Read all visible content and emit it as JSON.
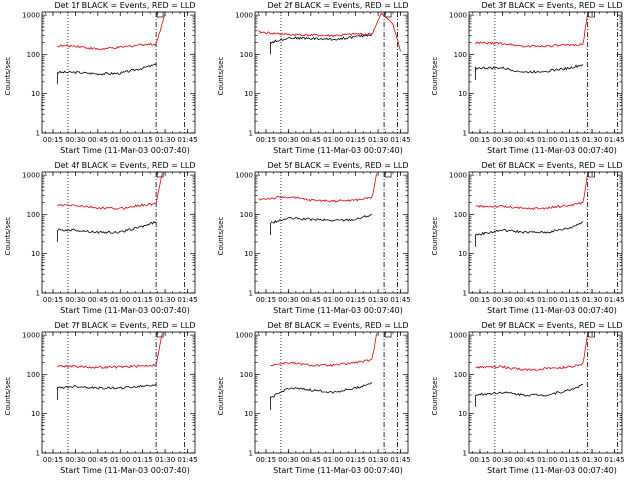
{
  "chart_data": [
    {
      "type": "line",
      "title": "Det 1f BLACK = Events, RED = LLD",
      "xlabel": "Start Time (11-Mar-03 00:07:40)",
      "ylabel": "Counts/sec",
      "yscale": "log",
      "ylim": [
        1,
        1200
      ],
      "xlim": [
        "00:07:40",
        "01:50:00"
      ],
      "xticks": [
        "00:15",
        "00:30",
        "00:45",
        "01:00",
        "01:15",
        "01:30",
        "01:45"
      ],
      "yticks": [
        "1",
        "10",
        "100",
        "1000"
      ],
      "series": [
        {
          "color": "#000000",
          "x": [
            "00:18",
            "00:30",
            "00:45",
            "01:00",
            "01:15",
            "01:24"
          ],
          "values": [
            35,
            35,
            32,
            33,
            45,
            55
          ]
        },
        {
          "color": "#e00000",
          "x": [
            "00:18",
            "00:30",
            "00:45",
            "01:00",
            "01:15",
            "01:24",
            "01:30"
          ],
          "values": [
            165,
            165,
            135,
            150,
            180,
            180,
            1100
          ]
        }
      ],
      "vlines": [
        {
          "x": "00:25",
          "style": "dotted"
        },
        {
          "x": "01:24",
          "style": "dash-dot"
        },
        {
          "x": "01:43",
          "style": "dash-dot"
        }
      ]
    },
    {
      "type": "line",
      "title": "Det 2f BLACK = Events, RED = LLD",
      "xlabel": "Start Time (11-Mar-03 00:07:40)",
      "ylabel": "Counts/sec",
      "yscale": "log",
      "ylim": [
        1,
        1200
      ],
      "xlim": [
        "00:07:40",
        "01:50:00"
      ],
      "xticks": [
        "00:15",
        "00:30",
        "00:45",
        "01:00",
        "01:15",
        "01:30",
        "01:45"
      ],
      "yticks": [
        "1",
        "10",
        "100",
        "1000"
      ],
      "series": [
        {
          "color": "#000000",
          "x": [
            "00:18",
            "00:30",
            "00:45",
            "01:00",
            "01:15",
            "01:26"
          ],
          "values": [
            200,
            265,
            255,
            240,
            280,
            320
          ]
        },
        {
          "color": "#e00000",
          "x": [
            "00:10",
            "00:30",
            "00:45",
            "01:00",
            "01:15",
            "01:26",
            "01:32",
            "01:40",
            "01:45"
          ],
          "values": [
            370,
            320,
            310,
            300,
            330,
            330,
            1100,
            600,
            120
          ]
        }
      ],
      "vlines": [
        {
          "x": "00:25",
          "style": "dotted"
        },
        {
          "x": "01:34",
          "style": "dash-dot"
        },
        {
          "x": "01:43",
          "style": "dash-dot"
        }
      ]
    },
    {
      "type": "line",
      "title": "Det 3f BLACK = Events, RED = LLD",
      "xlabel": "Start Time (11-Mar-03 00:07:40)",
      "ylabel": "Counts/sec",
      "yscale": "log",
      "ylim": [
        1,
        1200
      ],
      "xlim": [
        "00:07:40",
        "01:50:00"
      ],
      "xticks": [
        "00:15",
        "00:30",
        "00:45",
        "01:00",
        "01:15",
        "01:30",
        "01:45"
      ],
      "yticks": [
        "1",
        "10",
        "100",
        "1000"
      ],
      "series": [
        {
          "color": "#000000",
          "x": [
            "00:12",
            "00:30",
            "00:45",
            "01:00",
            "01:15",
            "01:24"
          ],
          "values": [
            45,
            45,
            35,
            38,
            45,
            55
          ]
        },
        {
          "color": "#e00000",
          "x": [
            "00:12",
            "00:30",
            "00:45",
            "01:00",
            "01:15",
            "01:24",
            "01:27"
          ],
          "values": [
            195,
            190,
            160,
            165,
            170,
            185,
            1100
          ]
        }
      ],
      "vlines": [
        {
          "x": "00:25",
          "style": "dotted"
        },
        {
          "x": "01:27",
          "style": "dash-dot"
        },
        {
          "x": "01:47",
          "style": "dash-dot"
        }
      ]
    },
    {
      "type": "line",
      "title": "Det 4f BLACK = Events, RED = LLD",
      "xlabel": "Start Time (11-Mar-03 00:07:40)",
      "ylabel": "Counts/sec",
      "yscale": "log",
      "ylim": [
        1,
        1200
      ],
      "xlim": [
        "00:07:40",
        "01:50:00"
      ],
      "xticks": [
        "00:15",
        "00:30",
        "00:45",
        "01:00",
        "01:15",
        "01:30",
        "01:45"
      ],
      "yticks": [
        "1",
        "10",
        "100",
        "1000"
      ],
      "series": [
        {
          "color": "#000000",
          "x": [
            "00:18",
            "00:30",
            "00:45",
            "01:00",
            "01:15",
            "01:24"
          ],
          "values": [
            40,
            40,
            35,
            35,
            50,
            65
          ]
        },
        {
          "color": "#e00000",
          "x": [
            "00:18",
            "00:30",
            "00:45",
            "01:00",
            "01:15",
            "01:24",
            "01:28"
          ],
          "values": [
            170,
            170,
            145,
            140,
            175,
            185,
            1100
          ]
        }
      ],
      "vlines": [
        {
          "x": "00:25",
          "style": "dotted"
        },
        {
          "x": "01:24",
          "style": "dash-dot"
        },
        {
          "x": "01:43",
          "style": "dash-dot"
        }
      ]
    },
    {
      "type": "line",
      "title": "Det 5f BLACK = Events, RED = LLD",
      "xlabel": "Start Time (11-Mar-03 00:07:40)",
      "ylabel": "Counts/sec",
      "yscale": "log",
      "ylim": [
        1,
        1200
      ],
      "xlim": [
        "00:07:40",
        "01:50:00"
      ],
      "xticks": [
        "00:15",
        "00:30",
        "00:45",
        "01:00",
        "01:15",
        "01:30",
        "01:45"
      ],
      "yticks": [
        "1",
        "10",
        "100",
        "1000"
      ],
      "series": [
        {
          "color": "#000000",
          "x": [
            "00:18",
            "00:30",
            "00:45",
            "01:00",
            "01:15",
            "01:26"
          ],
          "values": [
            60,
            80,
            75,
            70,
            75,
            100
          ]
        },
        {
          "color": "#e00000",
          "x": [
            "00:10",
            "00:30",
            "00:45",
            "01:00",
            "01:15",
            "01:26",
            "01:29"
          ],
          "values": [
            240,
            280,
            230,
            220,
            230,
            270,
            1100
          ]
        }
      ],
      "vlines": [
        {
          "x": "00:25",
          "style": "dotted"
        },
        {
          "x": "01:34",
          "style": "dash-dot"
        },
        {
          "x": "01:43",
          "style": "dash-dot"
        }
      ]
    },
    {
      "type": "line",
      "title": "Det 6f BLACK = Events, RED = LLD",
      "xlabel": "Start Time (11-Mar-03 00:07:40)",
      "ylabel": "Counts/sec",
      "yscale": "log",
      "ylim": [
        1,
        1200
      ],
      "xlim": [
        "00:07:40",
        "01:50:00"
      ],
      "xticks": [
        "00:15",
        "00:30",
        "00:45",
        "01:00",
        "01:15",
        "01:30",
        "01:45"
      ],
      "yticks": [
        "1",
        "10",
        "100",
        "1000"
      ],
      "series": [
        {
          "color": "#000000",
          "x": [
            "00:12",
            "00:30",
            "00:45",
            "01:00",
            "01:15",
            "01:24"
          ],
          "values": [
            30,
            40,
            35,
            35,
            45,
            65
          ]
        },
        {
          "color": "#e00000",
          "x": [
            "00:12",
            "00:30",
            "00:45",
            "01:00",
            "01:15",
            "01:24",
            "01:27"
          ],
          "values": [
            160,
            160,
            140,
            145,
            170,
            200,
            1100
          ]
        }
      ],
      "vlines": [
        {
          "x": "00:25",
          "style": "dotted"
        },
        {
          "x": "01:27",
          "style": "dash-dot"
        },
        {
          "x": "01:47",
          "style": "dash-dot"
        }
      ]
    },
    {
      "type": "line",
      "title": "Det 7f BLACK = Events, RED = LLD",
      "xlabel": "Start Time (11-Mar-03 00:07:40)",
      "ylabel": "Counts/sec",
      "yscale": "log",
      "ylim": [
        1,
        1200
      ],
      "xlim": [
        "00:07:40",
        "01:50:00"
      ],
      "xticks": [
        "00:15",
        "00:30",
        "00:45",
        "01:00",
        "01:15",
        "01:30",
        "01:45"
      ],
      "yticks": [
        "1",
        "10",
        "100",
        "1000"
      ],
      "series": [
        {
          "color": "#000000",
          "x": [
            "00:18",
            "00:30",
            "00:45",
            "01:00",
            "01:15",
            "01:24"
          ],
          "values": [
            45,
            50,
            45,
            45,
            50,
            55
          ]
        },
        {
          "color": "#e00000",
          "x": [
            "00:18",
            "00:30",
            "00:45",
            "01:00",
            "01:15",
            "01:24",
            "01:28"
          ],
          "values": [
            165,
            160,
            150,
            155,
            165,
            175,
            1100
          ]
        }
      ],
      "vlines": [
        {
          "x": "00:25",
          "style": "dotted"
        },
        {
          "x": "01:24",
          "style": "dash-dot"
        },
        {
          "x": "01:43",
          "style": "dash-dot"
        }
      ]
    },
    {
      "type": "line",
      "title": "Det 8f BLACK = Events, RED = LLD",
      "xlabel": "Start Time (11-Mar-03 00:07:40)",
      "ylabel": "Counts/sec",
      "yscale": "log",
      "ylim": [
        1,
        1200
      ],
      "xlim": [
        "00:07:40",
        "01:50:00"
      ],
      "xticks": [
        "00:15",
        "00:30",
        "00:45",
        "01:00",
        "01:15",
        "01:30",
        "01:45"
      ],
      "yticks": [
        "1",
        "10",
        "100",
        "1000"
      ],
      "series": [
        {
          "color": "#000000",
          "x": [
            "00:18",
            "00:30",
            "00:45",
            "01:00",
            "01:15",
            "01:26"
          ],
          "values": [
            25,
            45,
            40,
            35,
            45,
            60
          ]
        },
        {
          "color": "#e00000",
          "x": [
            "00:18",
            "00:30",
            "00:45",
            "01:00",
            "01:15",
            "01:26",
            "01:29"
          ],
          "values": [
            170,
            200,
            170,
            170,
            200,
            230,
            1100
          ]
        }
      ],
      "vlines": [
        {
          "x": "00:25",
          "style": "dotted"
        },
        {
          "x": "01:34",
          "style": "dash-dot"
        },
        {
          "x": "01:43",
          "style": "dash-dot"
        }
      ]
    },
    {
      "type": "line",
      "title": "Det 9f BLACK = Events, RED = LLD",
      "xlabel": "Start Time (11-Mar-03 00:07:40)",
      "ylabel": "Counts/sec",
      "yscale": "log",
      "ylim": [
        1,
        1200
      ],
      "xlim": [
        "00:07:40",
        "01:50:00"
      ],
      "xticks": [
        "00:15",
        "00:30",
        "00:45",
        "01:00",
        "01:15",
        "01:30",
        "01:45"
      ],
      "yticks": [
        "1",
        "10",
        "100",
        "1000"
      ],
      "series": [
        {
          "color": "#000000",
          "x": [
            "00:12",
            "00:30",
            "00:45",
            "01:00",
            "01:15",
            "01:24"
          ],
          "values": [
            30,
            35,
            30,
            30,
            40,
            55
          ]
        },
        {
          "color": "#e00000",
          "x": [
            "00:12",
            "00:30",
            "00:45",
            "01:00",
            "01:15",
            "01:24",
            "01:27"
          ],
          "values": [
            150,
            155,
            130,
            140,
            155,
            185,
            1100
          ]
        }
      ],
      "vlines": [
        {
          "x": "00:25",
          "style": "dotted"
        },
        {
          "x": "01:27",
          "style": "dash-dot"
        },
        {
          "x": "01:47",
          "style": "dash-dot"
        }
      ]
    }
  ]
}
